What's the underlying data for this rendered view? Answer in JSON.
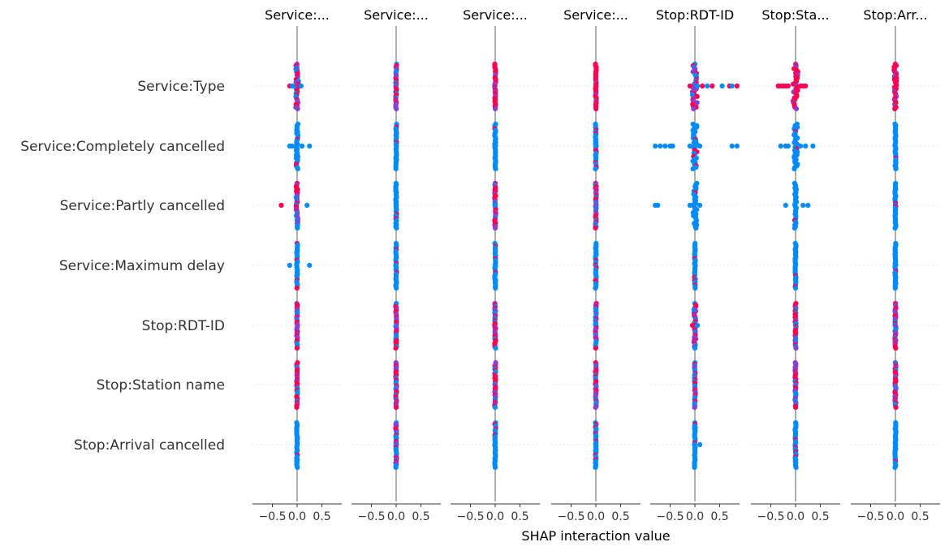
{
  "chart_data": {
    "type": "scatter",
    "xlabel": "SHAP interaction value",
    "xlim": [
      -0.9,
      0.9
    ],
    "xticks": [
      -0.5,
      0.0,
      0.5
    ],
    "xtick_labels": [
      "−0.5",
      "0.0",
      "0.5"
    ],
    "grid": false,
    "legend": "none",
    "colors": {
      "low": "#008bfb",
      "high": "#ff0052",
      "mid": "#8a3fd1",
      "zero_line": "#999999",
      "row_grid": "#e6e6e6"
    },
    "row_labels": [
      "Service:Type",
      "Service:Completely cancelled",
      "Service:Partly cancelled",
      "Service:Maximum delay",
      "Stop:RDT-ID",
      "Stop:Station name",
      "Stop:Arrival cancelled"
    ],
    "panels": [
      {
        "title": "Service:...",
        "rows": [
          {
            "spread": 0.03,
            "mix": "mixed",
            "outliers": [
              -0.15,
              -0.1,
              0.05,
              0.08
            ]
          },
          {
            "spread": 0.02,
            "mix": "blue",
            "outliers": [
              -0.15,
              -0.1,
              0.1,
              0.25
            ]
          },
          {
            "spread": 0.02,
            "mix": "mixed",
            "outliers": [
              -0.32,
              0.2
            ]
          },
          {
            "spread": 0.01,
            "mix": "blue",
            "outliers": [
              -0.15,
              0.25
            ]
          },
          {
            "spread": 0.01,
            "mix": "mixed",
            "outliers": []
          },
          {
            "spread": 0.01,
            "mix": "mixed",
            "outliers": []
          },
          {
            "spread": 0.01,
            "mix": "blue",
            "outliers": []
          }
        ]
      },
      {
        "title": "Service:...",
        "rows": [
          {
            "spread": 0.01,
            "mix": "mixed",
            "outliers": []
          },
          {
            "spread": 0.01,
            "mix": "blue",
            "outliers": []
          },
          {
            "spread": 0.01,
            "mix": "blue",
            "outliers": []
          },
          {
            "spread": 0.01,
            "mix": "blue",
            "outliers": []
          },
          {
            "spread": 0.01,
            "mix": "mixed",
            "outliers": []
          },
          {
            "spread": 0.01,
            "mix": "mixed",
            "outliers": []
          },
          {
            "spread": 0.01,
            "mix": "mixed",
            "outliers": []
          }
        ]
      },
      {
        "title": "Service:...",
        "rows": [
          {
            "spread": 0.01,
            "mix": "pink",
            "outliers": []
          },
          {
            "spread": 0.01,
            "mix": "blue",
            "outliers": []
          },
          {
            "spread": 0.01,
            "mix": "mixed",
            "outliers": []
          },
          {
            "spread": 0.01,
            "mix": "blue",
            "outliers": []
          },
          {
            "spread": 0.01,
            "mix": "mixed",
            "outliers": []
          },
          {
            "spread": 0.01,
            "mix": "mixed",
            "outliers": []
          },
          {
            "spread": 0.01,
            "mix": "blue",
            "outliers": []
          }
        ]
      },
      {
        "title": "Service:...",
        "rows": [
          {
            "spread": 0.01,
            "mix": "pink",
            "outliers": []
          },
          {
            "spread": 0.01,
            "mix": "blue",
            "outliers": []
          },
          {
            "spread": 0.01,
            "mix": "mixed",
            "outliers": []
          },
          {
            "spread": 0.01,
            "mix": "blue",
            "outliers": []
          },
          {
            "spread": 0.01,
            "mix": "mixed",
            "outliers": []
          },
          {
            "spread": 0.01,
            "mix": "mixed",
            "outliers": []
          },
          {
            "spread": 0.01,
            "mix": "blue",
            "outliers": []
          }
        ]
      },
      {
        "title": "Stop:RDT-ID",
        "rows": [
          {
            "spread": 0.05,
            "mix": "mixed",
            "outliers": [
              -0.1,
              0.05,
              0.15,
              0.25,
              0.35,
              0.55,
              0.7,
              0.75,
              0.85
            ]
          },
          {
            "spread": 0.04,
            "mix": "blue",
            "outliers": [
              -0.8,
              -0.7,
              -0.6,
              -0.5,
              -0.45,
              -0.1,
              0.1,
              0.75,
              0.85
            ]
          },
          {
            "spread": 0.04,
            "mix": "blue",
            "outliers": [
              -0.8,
              -0.75,
              -0.1,
              0.1
            ]
          },
          {
            "spread": 0.01,
            "mix": "blue",
            "outliers": []
          },
          {
            "spread": 0.02,
            "mix": "mixed",
            "outliers": [
              -0.05,
              0.05
            ]
          },
          {
            "spread": 0.01,
            "mix": "mixed",
            "outliers": []
          },
          {
            "spread": 0.01,
            "mix": "blue",
            "outliers": [
              0.1
            ]
          }
        ]
      },
      {
        "title": "Stop:Sta...",
        "rows": [
          {
            "spread": 0.05,
            "mix": "pink",
            "outliers": [
              -0.35,
              -0.3,
              -0.25,
              -0.2,
              -0.15,
              0.1,
              0.15,
              0.2
            ]
          },
          {
            "spread": 0.04,
            "mix": "blue",
            "outliers": [
              -0.3,
              -0.2,
              -0.15,
              0.1,
              0.2,
              0.35
            ]
          },
          {
            "spread": 0.02,
            "mix": "blue",
            "outliers": [
              -0.2,
              0.15,
              0.25
            ]
          },
          {
            "spread": 0.01,
            "mix": "blue",
            "outliers": []
          },
          {
            "spread": 0.01,
            "mix": "mixed",
            "outliers": []
          },
          {
            "spread": 0.01,
            "mix": "mixed",
            "outliers": []
          },
          {
            "spread": 0.01,
            "mix": "blue",
            "outliers": []
          }
        ]
      },
      {
        "title": "Stop:Arr...",
        "rows": [
          {
            "spread": 0.03,
            "mix": "pink",
            "outliers": []
          },
          {
            "spread": 0.01,
            "mix": "blue",
            "outliers": []
          },
          {
            "spread": 0.01,
            "mix": "blue",
            "outliers": []
          },
          {
            "spread": 0.01,
            "mix": "blue",
            "outliers": []
          },
          {
            "spread": 0.01,
            "mix": "mixed",
            "outliers": []
          },
          {
            "spread": 0.01,
            "mix": "mixed",
            "outliers": []
          },
          {
            "spread": 0.01,
            "mix": "blue",
            "outliers": []
          }
        ]
      }
    ]
  }
}
